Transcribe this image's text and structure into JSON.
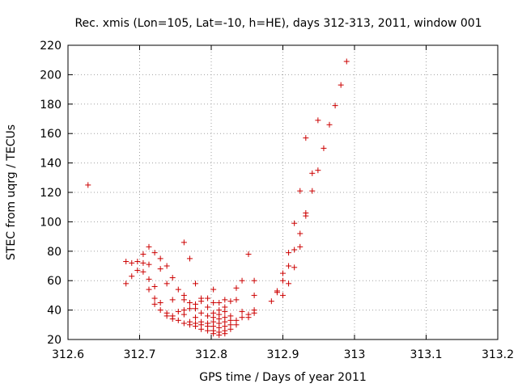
{
  "chart_data": {
    "type": "scatter",
    "title": "Rec. xmis (Lon=105, Lat=-10, h=HE), days 312-313, 2011, window 001",
    "xlabel": "GPS time / Days of year 2011",
    "ylabel": "STEC from uqrg / TECUs",
    "xlim": [
      312.6,
      313.2
    ],
    "ylim": [
      20,
      220
    ],
    "xticks": [
      312.6,
      312.7,
      312.8,
      312.9,
      313.0,
      313.1,
      313.2
    ],
    "xtick_labels": [
      "312.6",
      "312.7",
      "312.8",
      "312.9",
      "313",
      "313.1",
      "313.2"
    ],
    "yticks": [
      20,
      40,
      60,
      80,
      100,
      120,
      140,
      160,
      180,
      200,
      220
    ],
    "ytick_labels": [
      "20",
      "40",
      "60",
      "80",
      "100",
      "120",
      "140",
      "160",
      "180",
      "200",
      "220"
    ],
    "grid": true,
    "marker": "+",
    "color": "#cc0000",
    "points": [
      [
        312.628,
        125
      ],
      [
        312.681,
        73
      ],
      [
        312.681,
        58
      ],
      [
        312.689,
        72
      ],
      [
        312.689,
        63
      ],
      [
        312.697,
        73
      ],
      [
        312.697,
        67
      ],
      [
        312.705,
        78
      ],
      [
        312.705,
        72
      ],
      [
        312.705,
        66
      ],
      [
        312.713,
        83
      ],
      [
        312.713,
        71
      ],
      [
        312.713,
        61
      ],
      [
        312.713,
        54
      ],
      [
        312.721,
        79
      ],
      [
        312.721,
        56
      ],
      [
        312.721,
        48
      ],
      [
        312.721,
        44
      ],
      [
        312.729,
        75
      ],
      [
        312.729,
        68
      ],
      [
        312.729,
        45
      ],
      [
        312.729,
        40
      ],
      [
        312.738,
        70
      ],
      [
        312.738,
        58
      ],
      [
        312.738,
        38
      ],
      [
        312.738,
        36
      ],
      [
        312.746,
        62
      ],
      [
        312.746,
        47
      ],
      [
        312.746,
        36
      ],
      [
        312.746,
        34
      ],
      [
        312.754,
        54
      ],
      [
        312.754,
        39
      ],
      [
        312.754,
        33
      ],
      [
        312.762,
        86
      ],
      [
        312.762,
        50
      ],
      [
        312.762,
        47
      ],
      [
        312.762,
        40
      ],
      [
        312.762,
        37
      ],
      [
        312.762,
        31
      ],
      [
        312.77,
        75
      ],
      [
        312.77,
        45
      ],
      [
        312.77,
        41
      ],
      [
        312.77,
        32
      ],
      [
        312.77,
        30
      ],
      [
        312.778,
        58
      ],
      [
        312.778,
        44
      ],
      [
        312.778,
        41
      ],
      [
        312.778,
        35
      ],
      [
        312.778,
        31
      ],
      [
        312.778,
        29
      ],
      [
        312.786,
        48
      ],
      [
        312.786,
        46
      ],
      [
        312.786,
        38
      ],
      [
        312.786,
        32
      ],
      [
        312.786,
        30
      ],
      [
        312.786,
        27
      ],
      [
        312.795,
        48
      ],
      [
        312.795,
        42
      ],
      [
        312.795,
        36
      ],
      [
        312.795,
        31
      ],
      [
        312.795,
        29
      ],
      [
        312.795,
        26
      ],
      [
        312.803,
        54
      ],
      [
        312.803,
        45
      ],
      [
        312.803,
        38
      ],
      [
        312.803,
        35
      ],
      [
        312.803,
        32
      ],
      [
        312.803,
        29
      ],
      [
        312.803,
        26
      ],
      [
        312.803,
        24
      ],
      [
        312.811,
        45
      ],
      [
        312.811,
        40
      ],
      [
        312.811,
        37
      ],
      [
        312.811,
        34
      ],
      [
        312.811,
        31
      ],
      [
        312.811,
        28
      ],
      [
        312.811,
        25
      ],
      [
        312.811,
        23
      ],
      [
        312.819,
        47
      ],
      [
        312.819,
        42
      ],
      [
        312.819,
        39
      ],
      [
        312.819,
        35
      ],
      [
        312.819,
        32
      ],
      [
        312.819,
        29
      ],
      [
        312.819,
        26
      ],
      [
        312.819,
        24
      ],
      [
        312.827,
        46
      ],
      [
        312.827,
        36
      ],
      [
        312.827,
        33
      ],
      [
        312.827,
        30
      ],
      [
        312.827,
        27
      ],
      [
        312.835,
        55
      ],
      [
        312.835,
        47
      ],
      [
        312.835,
        33
      ],
      [
        312.835,
        30
      ],
      [
        312.843,
        60
      ],
      [
        312.843,
        39
      ],
      [
        312.843,
        35
      ],
      [
        312.852,
        78
      ],
      [
        312.852,
        37
      ],
      [
        312.852,
        35
      ],
      [
        312.86,
        60
      ],
      [
        312.86,
        50
      ],
      [
        312.86,
        40
      ],
      [
        312.86,
        38
      ],
      [
        312.884,
        46
      ],
      [
        312.892,
        53
      ],
      [
        312.892,
        52
      ],
      [
        312.9,
        65
      ],
      [
        312.9,
        60
      ],
      [
        312.9,
        50
      ],
      [
        312.908,
        79
      ],
      [
        312.908,
        70
      ],
      [
        312.908,
        58
      ],
      [
        312.916,
        99
      ],
      [
        312.916,
        81
      ],
      [
        312.916,
        69
      ],
      [
        312.924,
        92
      ],
      [
        312.924,
        83
      ],
      [
        312.924,
        121
      ],
      [
        312.932,
        157
      ],
      [
        312.932,
        106
      ],
      [
        312.932,
        104
      ],
      [
        312.941,
        133
      ],
      [
        312.941,
        121
      ],
      [
        312.949,
        169
      ],
      [
        312.949,
        135
      ],
      [
        312.957,
        150
      ],
      [
        312.965,
        166
      ],
      [
        312.973,
        179
      ],
      [
        312.981,
        193
      ],
      [
        312.989,
        209
      ]
    ]
  }
}
